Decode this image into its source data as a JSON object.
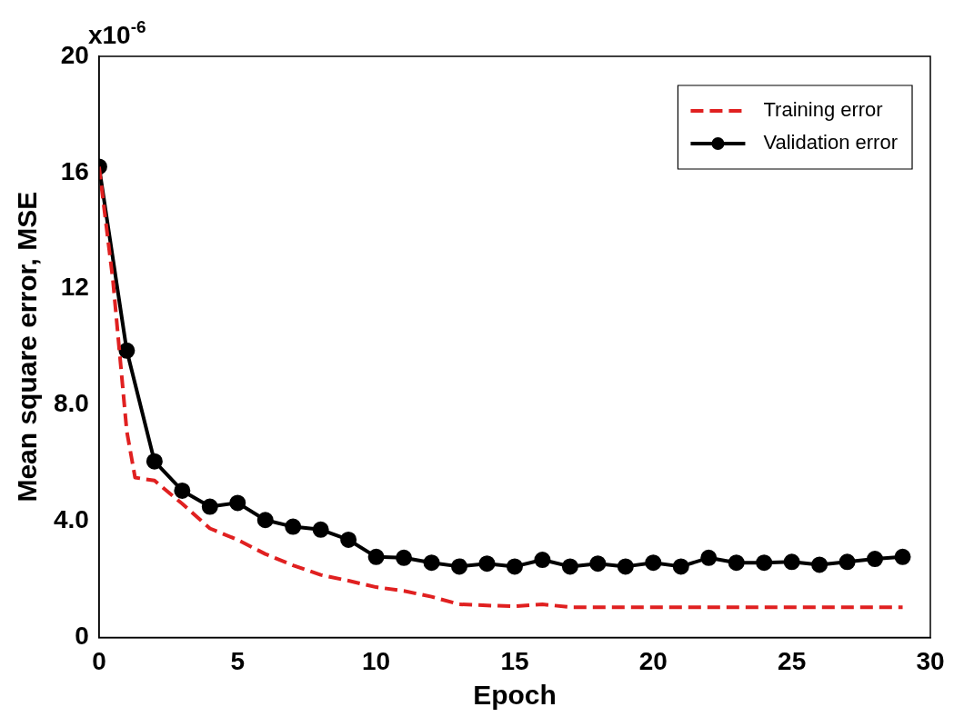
{
  "chart_data": {
    "type": "line",
    "xlabel": "Epoch",
    "ylabel": "Mean square error, MSE",
    "annotations": [
      "x10$^{-6}$"
    ],
    "xlim": [
      0,
      30
    ],
    "xticks": [
      0,
      5,
      10,
      15,
      20,
      25,
      30
    ],
    "ylim": [
      0,
      20
    ],
    "yticks": [
      0,
      {
        "value": 4,
        "label": "4.0"
      },
      {
        "value": 8,
        "label": "8.0"
      },
      12,
      16,
      20
    ],
    "grid": false,
    "legend": "top right",
    "series": [
      {
        "name": "Training error",
        "color": "#e02020",
        "marker": "none",
        "line_style": "dashed",
        "x": [
          0,
          0.5,
          1,
          1.3,
          2,
          3,
          4,
          5,
          6,
          7,
          8,
          9,
          10,
          11,
          12,
          13,
          14,
          15,
          16,
          17,
          18,
          19,
          20,
          21,
          22,
          23,
          24,
          25,
          26,
          27,
          28,
          29
        ],
        "values": [
          16.2,
          12.3,
          7.1,
          5.5,
          5.4,
          4.6,
          3.75,
          3.36,
          2.87,
          2.48,
          2.15,
          1.95,
          1.73,
          1.6,
          1.4,
          1.14,
          1.1,
          1.07,
          1.14,
          1.04,
          1.04,
          1.04,
          1.04,
          1.04,
          1.04,
          1.04,
          1.04,
          1.04,
          1.04,
          1.04,
          1.04,
          1.04
        ]
      },
      {
        "name": "Validation error",
        "color": "#000000",
        "marker": "circle",
        "line_style": "solid",
        "x": [
          0,
          1,
          2,
          3,
          4,
          5,
          6,
          7,
          8,
          9,
          10,
          11,
          12,
          13,
          14,
          15,
          16,
          17,
          18,
          19,
          20,
          21,
          22,
          23,
          24,
          25,
          26,
          27,
          28,
          29
        ],
        "values": [
          16.2,
          9.87,
          6.06,
          5.05,
          4.5,
          4.63,
          4.04,
          3.81,
          3.71,
          3.36,
          2.77,
          2.74,
          2.57,
          2.44,
          2.54,
          2.44,
          2.67,
          2.44,
          2.54,
          2.44,
          2.57,
          2.44,
          2.74,
          2.57,
          2.57,
          2.6,
          2.5,
          2.6,
          2.7,
          2.77
        ]
      }
    ]
  }
}
